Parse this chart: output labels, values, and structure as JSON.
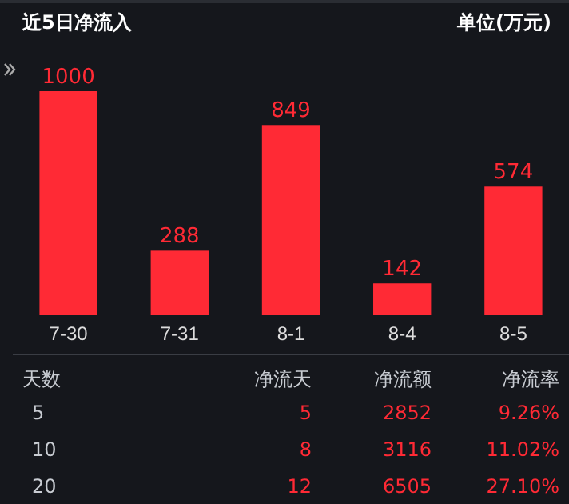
{
  "chart_data": [
    {
      "type": "bar",
      "title": "近5日净流入",
      "ylabel": "单位(万元)",
      "categories": [
        "7-30",
        "7-31",
        "8-1",
        "8-4",
        "8-5"
      ],
      "values": [
        1000,
        288,
        849,
        142,
        574
      ],
      "color": "#ff2a35",
      "data_labels": true
    },
    {
      "type": "other",
      "annotations": [
        "天数",
        "净流天",
        "净流额",
        "净流率",
        "5",
        "5",
        "2852",
        "9.26%",
        "10",
        "8",
        "3116",
        "11.02%",
        "20",
        "12",
        "6505",
        "27.10%"
      ]
    }
  ]
}
